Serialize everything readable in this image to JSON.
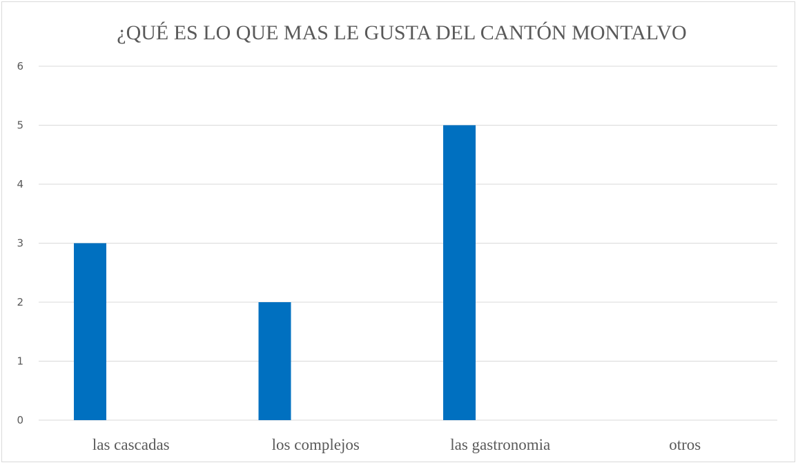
{
  "chart_data": {
    "type": "bar",
    "title": "¿QUÉ ES LO QUE MAS LE GUSTA DEL CANTÓN MONTALVO",
    "xlabel": "",
    "ylabel": "",
    "categories": [
      "las cascadas",
      "los complejos",
      "las gastronomia",
      "otros"
    ],
    "values": [
      3,
      2,
      5,
      0
    ],
    "ylim": [
      0,
      6
    ],
    "yticks": [
      "0",
      "1",
      "2",
      "3",
      "4",
      "5",
      "6"
    ],
    "grid": true,
    "legend": "none",
    "bar_color": "#0070C0",
    "grid_color": "#d9d9d9"
  }
}
